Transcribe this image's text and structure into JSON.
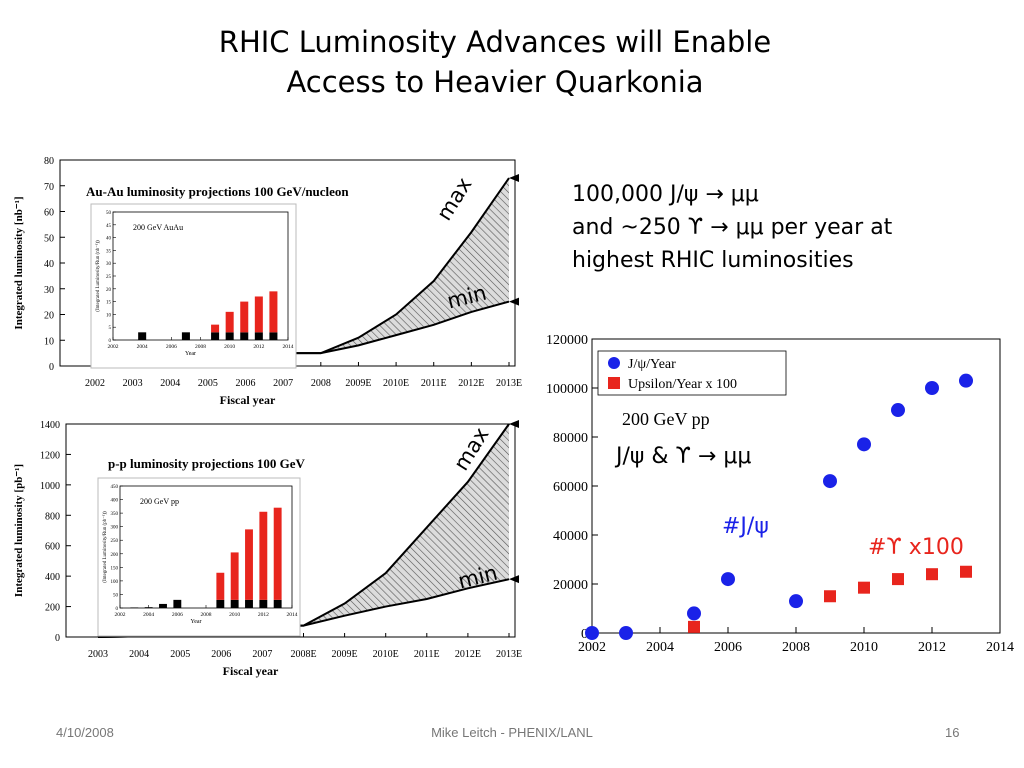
{
  "slide": {
    "title_line1": "RHIC Luminosity Advances will Enable",
    "title_line2": "Access to Heavier Quarkonia",
    "note_line1": "100,000 J/ψ → μμ",
    "note_line2": "and ~250 ϒ → μμ per year at",
    "note_line3": "highest RHIC luminosities",
    "footer_date": "4/10/2008",
    "footer_center": "Mike Leitch - PHENIX/LANL",
    "footer_page": "16"
  },
  "labels": {
    "max": "max",
    "min": "min",
    "jpsi_annot": "#J/ψ",
    "ups_annot": "#ϒ x100",
    "pp_channel": "J/ψ & ϒ → μμ"
  },
  "colors": {
    "red": "#e8251d",
    "blue": "#1a22e8",
    "band": "#999999"
  },
  "chart_data": [
    {
      "id": "auau",
      "type": "area",
      "title": "Au-Au luminosity projections 100 GeV/nucleon",
      "xlabel": "Fiscal year",
      "ylabel": "Integrated luminosity [nb⁻¹]",
      "categories": [
        "2002",
        "2003",
        "2004",
        "2005",
        "2006",
        "2007",
        "2008",
        "2009E",
        "2010E",
        "2011E",
        "2012E",
        "2013E"
      ],
      "yticks": [
        0,
        10,
        20,
        30,
        40,
        50,
        60,
        70,
        80
      ],
      "ylim": [
        0,
        80
      ],
      "series": [
        {
          "name": "max",
          "values": [
            0,
            0,
            1,
            1,
            1,
            5,
            5,
            11,
            20,
            33,
            52,
            73
          ]
        },
        {
          "name": "min",
          "values": [
            0,
            0,
            1,
            1,
            1,
            5,
            5,
            8,
            12,
            16,
            21,
            25
          ]
        }
      ],
      "inset": {
        "title": "200 GeV AuAu",
        "ylabel": "(Integrated Luminosity/Run (nb⁻¹))",
        "xlabel": "Year",
        "xticks": [
          2002,
          2004,
          2006,
          2008,
          2010,
          2012,
          2014
        ],
        "yticks": [
          0,
          5,
          10,
          15,
          20,
          25,
          30,
          35,
          40,
          45,
          50
        ],
        "ylim": [
          0,
          50
        ],
        "xlim": [
          2002,
          2014
        ],
        "bars": [
          {
            "x": 2004,
            "black": 3,
            "red": 0
          },
          {
            "x": 2007,
            "black": 3,
            "red": 0
          },
          {
            "x": 2009,
            "black": 3,
            "red": 3
          },
          {
            "x": 2010,
            "black": 3,
            "red": 8
          },
          {
            "x": 2011,
            "black": 3,
            "red": 12
          },
          {
            "x": 2012,
            "black": 3,
            "red": 14
          },
          {
            "x": 2013,
            "black": 3,
            "red": 16
          }
        ]
      }
    },
    {
      "id": "pp",
      "type": "area",
      "title": "p-p luminosity projections 100 GeV",
      "xlabel": "Fiscal year",
      "ylabel": "Integrated luminosity [pb⁻¹]",
      "categories": [
        "2003",
        "2004",
        "2005",
        "2006",
        "2007",
        "2008E",
        "2009E",
        "2010E",
        "2011E",
        "2012E",
        "2013E"
      ],
      "yticks": [
        0,
        200,
        400,
        600,
        800,
        1000,
        1200,
        1400
      ],
      "ylim": [
        0,
        1400
      ],
      "series": [
        {
          "name": "max",
          "values": [
            0,
            5,
            20,
            70,
            75,
            75,
            220,
            420,
            720,
            1020,
            1400
          ]
        },
        {
          "name": "min",
          "values": [
            0,
            5,
            20,
            70,
            75,
            75,
            140,
            200,
            250,
            320,
            380
          ]
        }
      ],
      "inset": {
        "title": "200 GeV pp",
        "ylabel": "(Integrated Luminosity/Run (pb⁻¹))",
        "xlabel": "Year",
        "xticks": [
          2002,
          2004,
          2006,
          2008,
          2010,
          2012,
          2014
        ],
        "yticks": [
          0,
          50,
          100,
          150,
          200,
          250,
          300,
          350,
          400,
          450
        ],
        "ylim": [
          0,
          450
        ],
        "xlim": [
          2002,
          2014
        ],
        "bars": [
          {
            "x": 2003,
            "black": 2,
            "red": 0
          },
          {
            "x": 2004,
            "black": 3,
            "red": 0
          },
          {
            "x": 2005,
            "black": 15,
            "red": 0
          },
          {
            "x": 2006,
            "black": 30,
            "red": 0
          },
          {
            "x": 2009,
            "black": 30,
            "red": 100
          },
          {
            "x": 2010,
            "black": 30,
            "red": 175
          },
          {
            "x": 2011,
            "black": 30,
            "red": 260
          },
          {
            "x": 2012,
            "black": 30,
            "red": 325
          },
          {
            "x": 2013,
            "black": 30,
            "red": 340
          }
        ]
      }
    },
    {
      "id": "yields",
      "type": "scatter",
      "title": "200 GeV pp",
      "xlim": [
        2002,
        2014
      ],
      "ylim": [
        0,
        120000
      ],
      "xticks": [
        2002,
        2004,
        2006,
        2008,
        2010,
        2012,
        2014
      ],
      "yticks": [
        0,
        20000,
        40000,
        60000,
        80000,
        100000,
        120000
      ],
      "legend_position": "top-left",
      "series": [
        {
          "name": "J/ψ/Year",
          "marker": "circle",
          "color": "#1a22e8",
          "x": [
            2002,
            2003,
            2005,
            2006,
            2008,
            2009,
            2010,
            2011,
            2012,
            2013
          ],
          "y": [
            0,
            0,
            8000,
            22000,
            13000,
            62000,
            77000,
            91000,
            100000,
            103000
          ]
        },
        {
          "name": "Upsilon/Year x 100",
          "marker": "square",
          "color": "#e8251d",
          "x": [
            2005,
            2009,
            2010,
            2011,
            2012,
            2013
          ],
          "y": [
            2500,
            15000,
            18500,
            22000,
            24000,
            25000
          ]
        }
      ]
    }
  ]
}
